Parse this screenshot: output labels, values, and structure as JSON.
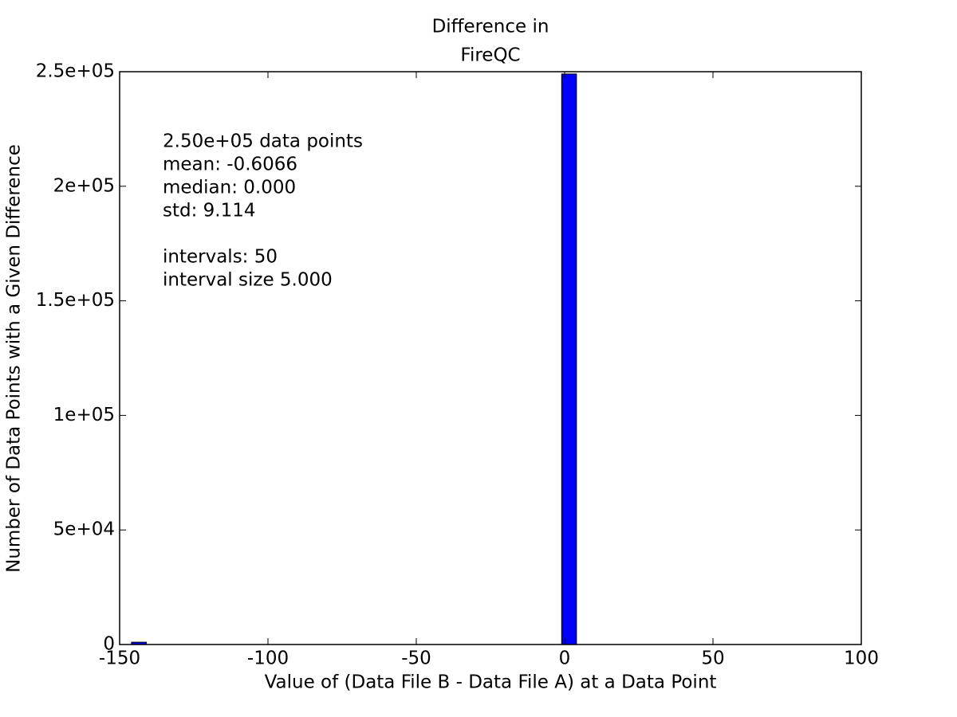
{
  "chart_data": {
    "type": "histogram",
    "title": [
      "Difference in",
      "FireQC"
    ],
    "xlabel": "Value of (Data File B - Data File A) at a Data Point",
    "ylabel": "Number of Data Points with a Given Difference",
    "annotation": [
      [
        "2.50e+05 data points",
        "mean: -0.6066",
        "median: 0.000",
        "std: 9.114"
      ],
      [
        "intervals: 50",
        "interval size 5.000"
      ]
    ],
    "bins": [
      -146,
      -141,
      -136,
      -131,
      -126,
      -121,
      -116,
      -111,
      -106,
      -101,
      -96,
      -91,
      -86,
      -81,
      -76,
      -71,
      -66,
      -61,
      -56,
      -51,
      -46,
      -41,
      -36,
      -31,
      -26,
      -21,
      -16,
      -11,
      -6,
      -1,
      4,
      9,
      14,
      19,
      24,
      29,
      34,
      39,
      44,
      49,
      54,
      59,
      64,
      69,
      74,
      79,
      84,
      89,
      94,
      99,
      104
    ],
    "values": [
      1000,
      0,
      0,
      0,
      0,
      0,
      0,
      0,
      0,
      0,
      0,
      0,
      0,
      0,
      0,
      0,
      0,
      0,
      0,
      0,
      0,
      0,
      0,
      0,
      0,
      0,
      0,
      0,
      0,
      249000,
      0,
      0,
      0,
      0,
      0,
      0,
      0,
      0,
      0,
      0,
      0,
      0,
      0,
      0,
      0,
      0,
      0,
      0,
      0,
      0
    ],
    "color": "#0000ff",
    "edgecolor": "#000000",
    "xlim": [
      -150,
      100
    ],
    "xticks": [
      -150,
      -100,
      -50,
      0,
      50,
      100
    ],
    "ylim": [
      0,
      250000
    ],
    "yticks": [
      0,
      {
        "value": 50000,
        "label": "5e+04"
      },
      {
        "value": 100000,
        "label": "1e+05"
      },
      {
        "value": 150000,
        "label": "1.5e+05"
      },
      {
        "value": 200000,
        "label": "2e+05"
      },
      {
        "value": 250000,
        "label": "2.5e+05"
      }
    ]
  }
}
